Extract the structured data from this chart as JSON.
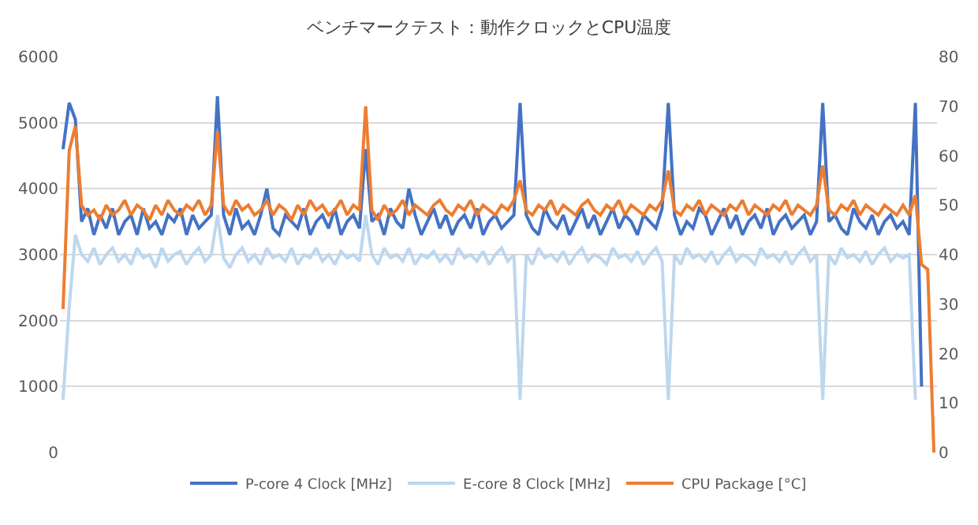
{
  "chart_data": {
    "type": "line",
    "title": "ベンチマークテスト：動作クロックとCPU温度",
    "categories": [
      null,
      null,
      null,
      null,
      null,
      null,
      null,
      null,
      null,
      null,
      null,
      null,
      null,
      null,
      null,
      null,
      null,
      null,
      null,
      null,
      null,
      null,
      null,
      null,
      null,
      null,
      null,
      null,
      null,
      null,
      null,
      null,
      null,
      null,
      null,
      null,
      null,
      null,
      null,
      null,
      null,
      null,
      null,
      null,
      null,
      null,
      null,
      null,
      null,
      null,
      null,
      null,
      null,
      null,
      null,
      null,
      null,
      null,
      null,
      null,
      null,
      null,
      null,
      null,
      null,
      null,
      null,
      null,
      null,
      null,
      null,
      null,
      null,
      null,
      null,
      null,
      null,
      null,
      null,
      null,
      null,
      null,
      null,
      null,
      null,
      null,
      null,
      null,
      null,
      null,
      null,
      null,
      null,
      null,
      null,
      null,
      null,
      null,
      null,
      null,
      null,
      null,
      null,
      null,
      null,
      null,
      null,
      null,
      null,
      null,
      null,
      null,
      null,
      null,
      null,
      null,
      null,
      null,
      null,
      null,
      null,
      null,
      null,
      null,
      null,
      null,
      null,
      null,
      null,
      null,
      null,
      null,
      null,
      null,
      null,
      null,
      null,
      null,
      null,
      null,
      null,
      null
    ],
    "series": [
      {
        "name": "P-core 4 Clock [MHz]",
        "color": "#4472c4",
        "values": [
          4600,
          5300,
          5050,
          3500,
          3700,
          3300,
          3600,
          3400,
          3700,
          3300,
          3500,
          3600,
          3300,
          3700,
          3400,
          3500,
          3300,
          3600,
          3500,
          3700,
          3300,
          3600,
          3400,
          3500,
          3600,
          5400,
          3600,
          3300,
          3700,
          3400,
          3500,
          3300,
          3600,
          4000,
          3400,
          3300,
          3600,
          3500,
          3400,
          3700,
          3300,
          3500,
          3600,
          3400,
          3700,
          3300,
          3500,
          3600,
          3400,
          4600,
          3500,
          3600,
          3300,
          3700,
          3500,
          3400,
          4000,
          3600,
          3300,
          3500,
          3700,
          3400,
          3600,
          3300,
          3500,
          3600,
          3400,
          3700,
          3300,
          3500,
          3600,
          3400,
          3500,
          3600,
          5300,
          3600,
          3400,
          3300,
          3700,
          3500,
          3400,
          3600,
          3300,
          3500,
          3700,
          3400,
          3600,
          3300,
          3500,
          3700,
          3400,
          3600,
          3500,
          3300,
          3600,
          3500,
          3400,
          3700,
          5300,
          3600,
          3300,
          3500,
          3400,
          3700,
          3600,
          3300,
          3500,
          3700,
          3400,
          3600,
          3300,
          3500,
          3600,
          3400,
          3700,
          3300,
          3500,
          3600,
          3400,
          3500,
          3600,
          3300,
          3500,
          5300,
          3500,
          3600,
          3400,
          3300,
          3700,
          3500,
          3400,
          3600,
          3300,
          3500,
          3600,
          3400,
          3500,
          3300,
          5300,
          1000,
          null,
          null
        ]
      },
      {
        "name": "E-core 8 Clock [MHz]",
        "color": "#bdd7ee",
        "values": [
          800,
          2200,
          3300,
          3000,
          2900,
          3100,
          2850,
          3000,
          3100,
          2900,
          3000,
          2850,
          3100,
          2950,
          3000,
          2800,
          3100,
          2900,
          3000,
          3050,
          2850,
          3000,
          3100,
          2900,
          3000,
          3600,
          2950,
          2800,
          3000,
          3100,
          2900,
          3000,
          2850,
          3100,
          2950,
          3000,
          2900,
          3100,
          2850,
          3000,
          2950,
          3100,
          2900,
          3000,
          2850,
          3050,
          2950,
          3000,
          2900,
          3600,
          3000,
          2850,
          3100,
          2950,
          3000,
          2900,
          3100,
          2850,
          3000,
          2950,
          3050,
          2900,
          3000,
          2850,
          3100,
          2950,
          3000,
          2900,
          3050,
          2850,
          3000,
          3100,
          2900,
          3000,
          800,
          3000,
          2850,
          3100,
          2950,
          3000,
          2900,
          3050,
          2850,
          3000,
          3100,
          2900,
          3000,
          2950,
          2850,
          3100,
          2950,
          3000,
          2900,
          3050,
          2850,
          3000,
          3100,
          2900,
          800,
          3000,
          2850,
          3100,
          2950,
          3000,
          2900,
          3050,
          2850,
          3000,
          3100,
          2900,
          3000,
          2950,
          2850,
          3100,
          2950,
          3000,
          2900,
          3050,
          2850,
          3000,
          3100,
          2900,
          3000,
          800,
          3000,
          2850,
          3100,
          2950,
          3000,
          2900,
          3050,
          2850,
          3000,
          3100,
          2900,
          3000,
          2950,
          3000,
          800,
          null,
          null,
          null
        ]
      },
      {
        "name": "CPU Package [°C]",
        "color": "#ed7d31",
        "axis": "y2",
        "values": [
          29,
          61,
          66,
          50,
          48,
          49,
          47,
          50,
          48,
          49,
          51,
          48,
          50,
          49,
          47,
          50,
          48,
          51,
          49,
          48,
          50,
          49,
          51,
          48,
          50,
          65,
          50,
          48,
          51,
          49,
          50,
          48,
          49,
          51,
          48,
          50,
          49,
          47,
          50,
          48,
          51,
          49,
          50,
          48,
          49,
          51,
          48,
          50,
          49,
          70,
          49,
          47,
          50,
          48,
          49,
          51,
          48,
          50,
          49,
          48,
          50,
          51,
          49,
          48,
          50,
          49,
          51,
          48,
          50,
          49,
          48,
          50,
          49,
          51,
          55,
          49,
          48,
          50,
          49,
          51,
          48,
          50,
          49,
          48,
          50,
          51,
          49,
          48,
          50,
          49,
          51,
          48,
          50,
          49,
          48,
          50,
          49,
          51,
          57,
          49,
          48,
          50,
          49,
          51,
          48,
          50,
          49,
          48,
          50,
          49,
          51,
          48,
          50,
          49,
          48,
          50,
          49,
          51,
          48,
          50,
          49,
          48,
          50,
          58,
          49,
          48,
          50,
          49,
          51,
          48,
          50,
          49,
          48,
          50,
          49,
          48,
          50,
          48,
          52,
          38,
          37,
          0
        ]
      }
    ],
    "ylim": [
      0,
      6000
    ],
    "yticks": [
      0,
      1000,
      2000,
      3000,
      4000,
      5000,
      6000
    ],
    "y2lim": [
      0,
      80
    ],
    "y2ticks": [
      0,
      10,
      20,
      30,
      40,
      50,
      60,
      70,
      80
    ],
    "grid": "y",
    "legend": "bottom",
    "marker": "none",
    "line_style": "solid"
  }
}
